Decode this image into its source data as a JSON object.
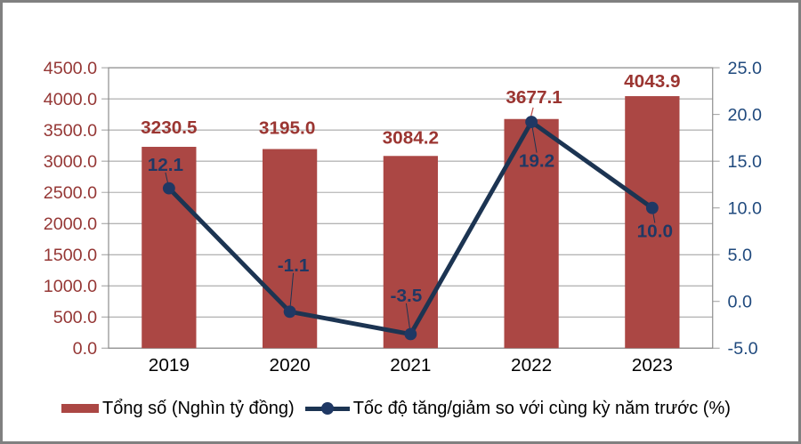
{
  "chart_data": {
    "type": "combo",
    "categories": [
      "2019",
      "2020",
      "2021",
      "2022",
      "2023"
    ],
    "series": [
      {
        "name": "Tổng số (Nghìn tỷ đồng)",
        "type": "bar",
        "axis": "left",
        "values": [
          3230.5,
          3195.0,
          3084.2,
          3677.1,
          4043.9
        ],
        "labels": [
          "3230.5",
          "3195.0",
          "3084.2",
          "3677.1",
          "4043.9"
        ]
      },
      {
        "name": "Tốc độ tăng/giảm so với cùng kỳ năm trước (%)",
        "type": "line",
        "axis": "right",
        "values": [
          12.1,
          -1.1,
          -3.5,
          19.2,
          10.0
        ],
        "labels": [
          "12.1",
          "-1.1",
          "-3.5",
          "19.2",
          "10.0"
        ]
      }
    ],
    "left_axis": {
      "min": 0,
      "max": 4500,
      "step": 500,
      "ticks": [
        "0.0",
        "500.0",
        "1000.0",
        "1500.0",
        "2000.0",
        "2500.0",
        "3000.0",
        "3500.0",
        "4000.0",
        "4500.0"
      ]
    },
    "right_axis": {
      "min": -5,
      "max": 25,
      "step": 5,
      "ticks": [
        "-5.0",
        "0.0",
        "5.0",
        "10.0",
        "15.0",
        "20.0",
        "25.0"
      ]
    },
    "grid": true,
    "legend_position": "bottom",
    "colors": {
      "bar": "#AB4744",
      "bar_label": "#9B3531",
      "line": "#1C3452",
      "marker": "#1F3864",
      "line_label": "#1F3864",
      "left_axis": "#953735",
      "right_axis": "#1F497D",
      "category": "#000000",
      "grid": "#9B9B9B",
      "plot_border": "#8C8C8C",
      "figure_border": "#808080",
      "background": "#FFFFFF",
      "leader_red": "#C0504D"
    }
  },
  "legend": {
    "items": [
      {
        "label": "Tổng số (Nghìn tỷ đồng)",
        "swatch": "bar-swatch"
      },
      {
        "label": "Tốc độ tăng/giảm so với cùng kỳ năm trước (%)",
        "swatch": "line-swatch"
      }
    ]
  }
}
